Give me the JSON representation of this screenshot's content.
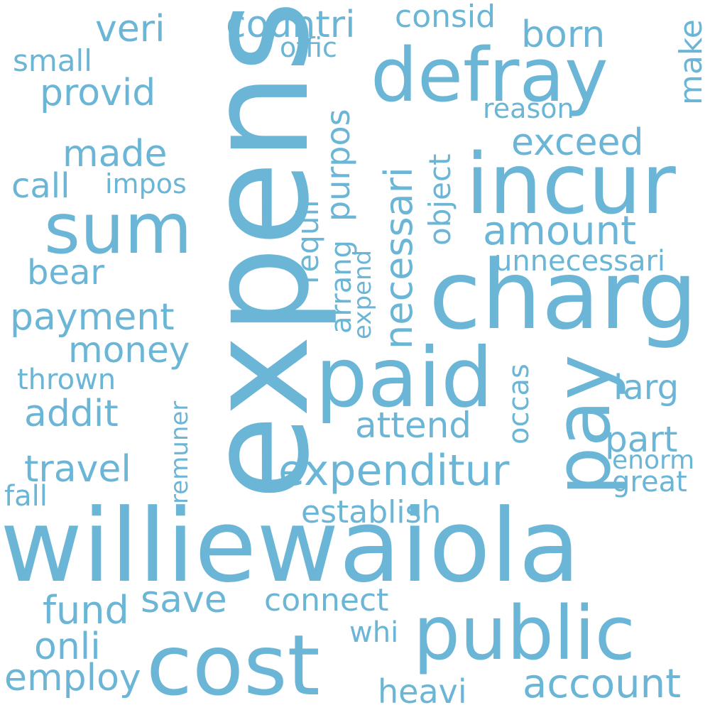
{
  "color": "#6bb6d6",
  "words": [
    "williewaiola",
    "expens",
    "charg",
    "paid",
    "incur",
    "defray",
    "cost",
    "public",
    "pay",
    "sum",
    "expenditur",
    "necessari",
    "purpos",
    "countri",
    "consid",
    "born",
    "make",
    "veri",
    "provid",
    "offic",
    "small",
    "made",
    "call",
    "impos",
    "exceed",
    "amount",
    "requir",
    "object",
    "reason",
    "arrang",
    "expend",
    "unnecessari",
    "bear",
    "payment",
    "money",
    "thrown",
    "addit",
    "attend",
    "larg",
    "part",
    "occas",
    "remuner",
    "travel",
    "enorm",
    "great",
    "fall",
    "establish",
    "save",
    "connect",
    "fund",
    "whi",
    "onli",
    "employ",
    "account",
    "heavi"
  ]
}
